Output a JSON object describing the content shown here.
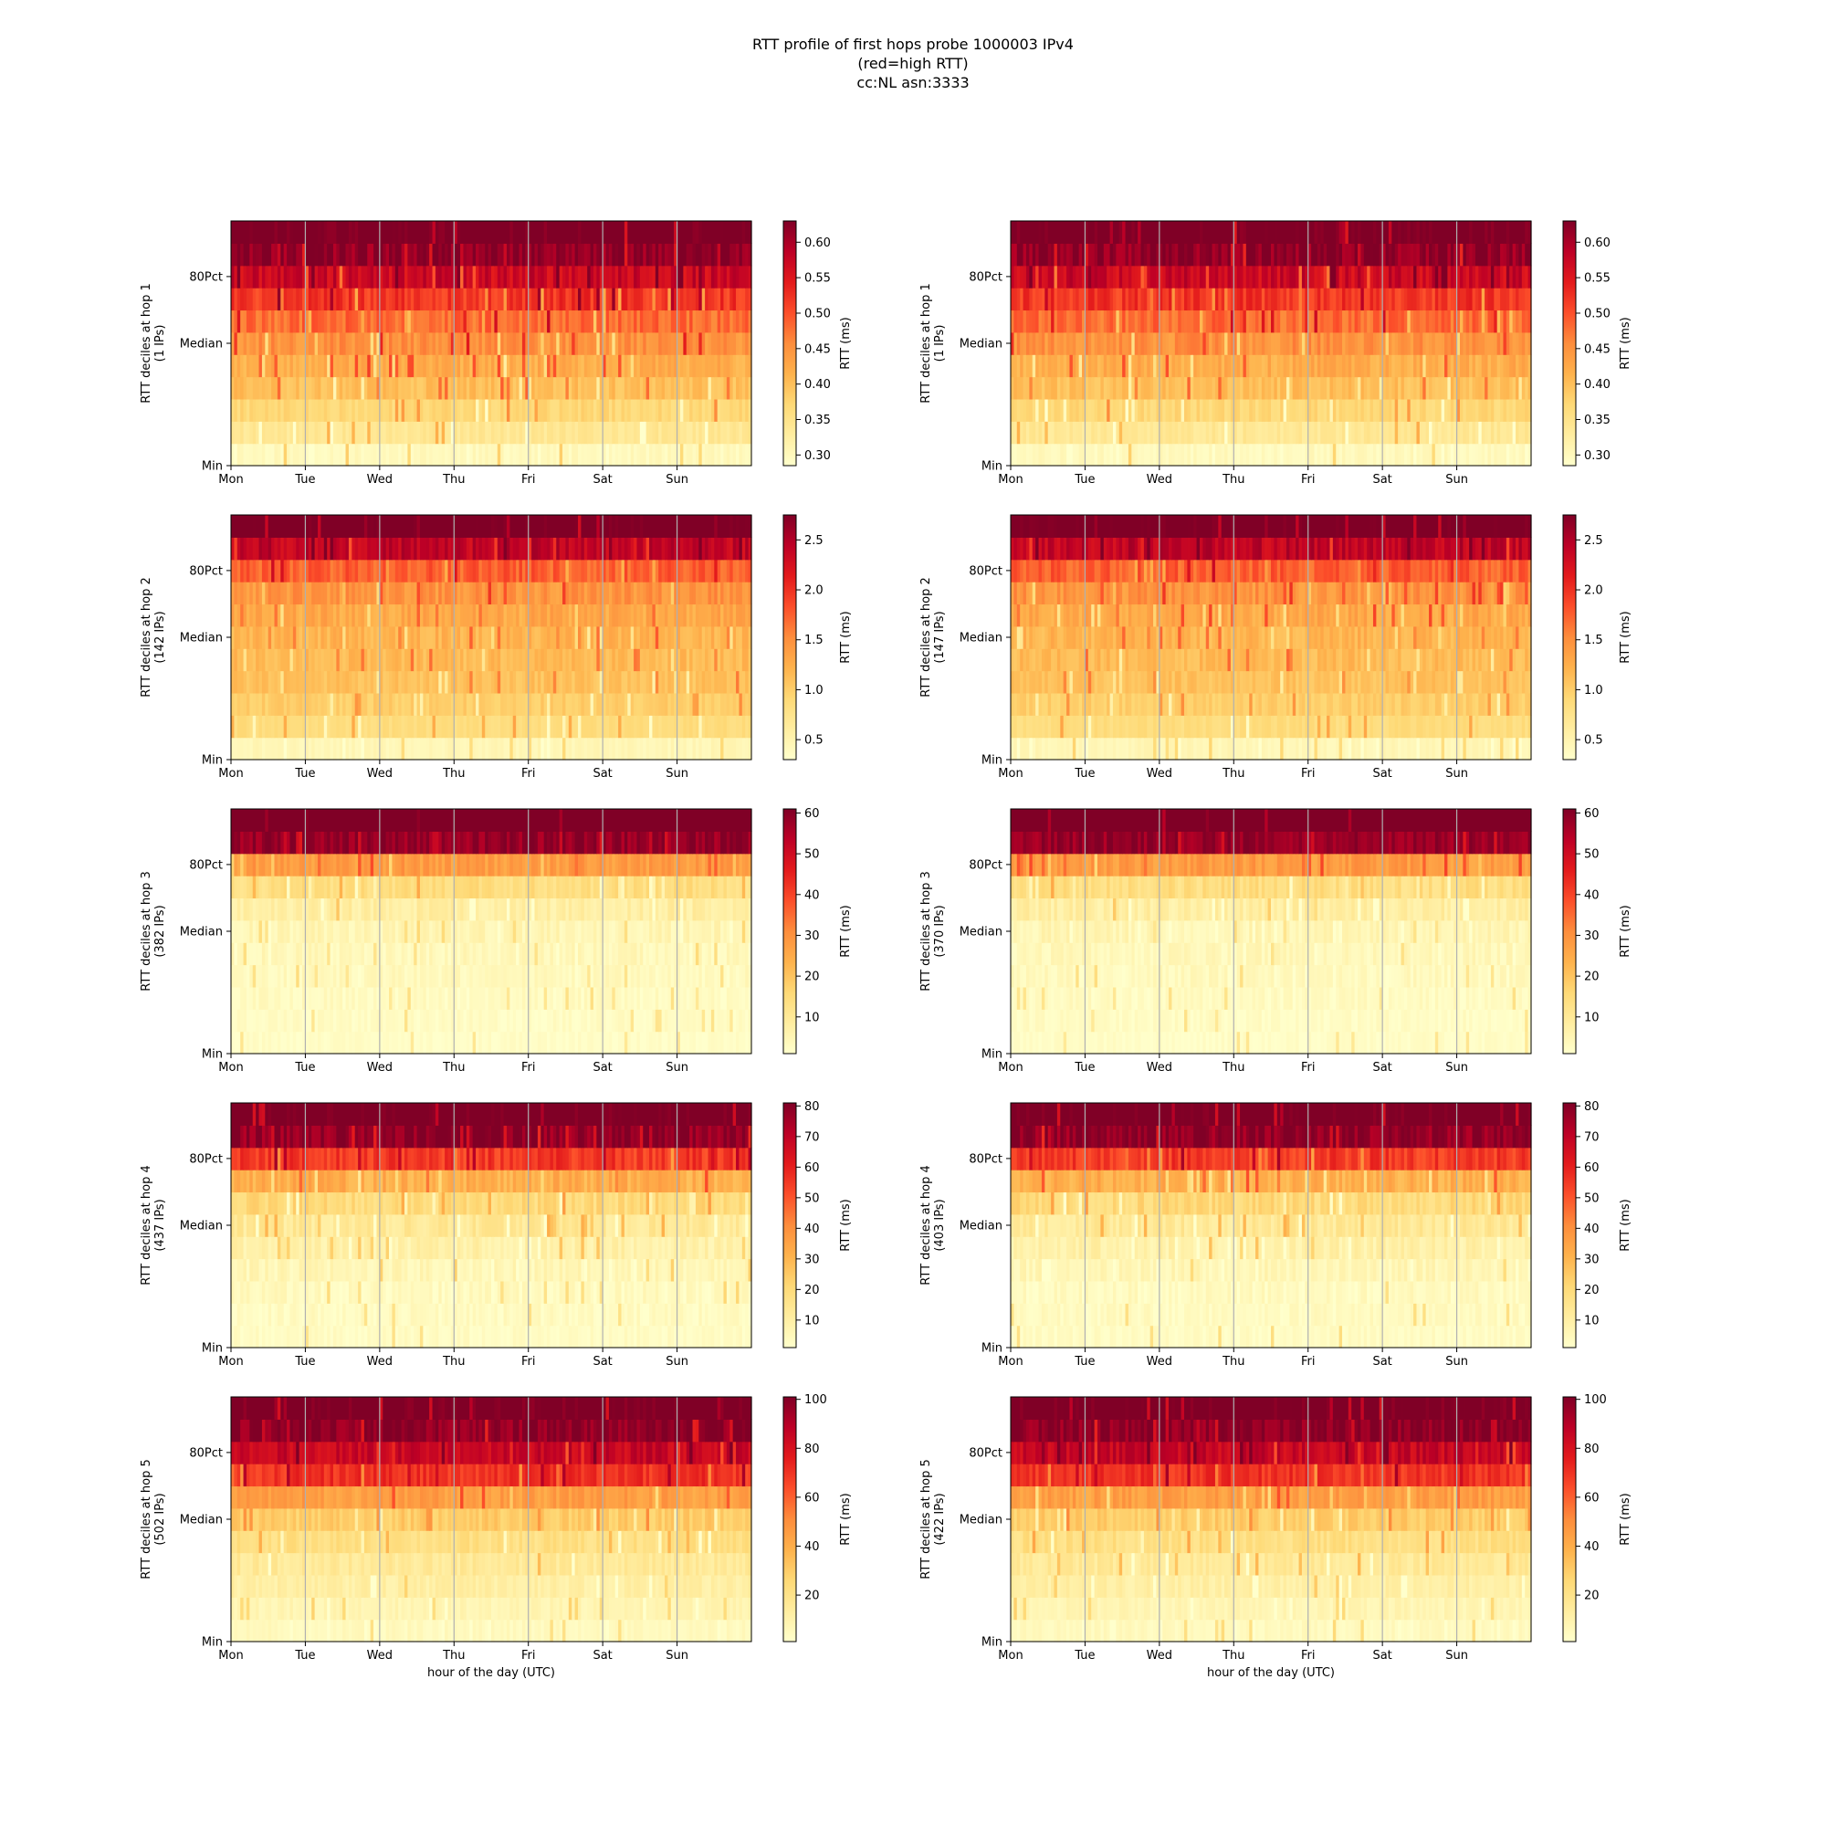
{
  "figure": {
    "title_lines": [
      "RTT profile of first hops probe 1000003 IPv4",
      "(red=high RTT)",
      "cc:NL asn:3333"
    ]
  },
  "colormap": [
    "#ffffcc",
    "#ffeda0",
    "#fed976",
    "#feb24c",
    "#fd8d3c",
    "#fc4e2a",
    "#e31a1c",
    "#bd0026",
    "#800026"
  ],
  "x_axis": {
    "tick_labels": [
      "Mon",
      "Tue",
      "Wed",
      "Thu",
      "Fri",
      "Sat",
      "Sun"
    ],
    "label": "hour of the day (UTC)",
    "range_hours": [
      0,
      168
    ]
  },
  "y_axis": {
    "tick_labels": [
      "Min",
      "Median",
      "80Pct"
    ],
    "deciles": 11
  },
  "colorbar_label": "RTT (ms)",
  "chart_data": [
    {
      "type": "heatmap",
      "hop": 1,
      "ylabel_line1": "RTT deciles at hop 1",
      "ylabel_line2": "(1 IPs)",
      "vmin": 0.285,
      "vmax": 0.63,
      "cbar_ticks": [
        "0.30",
        "0.35",
        "0.40",
        "0.45",
        "0.50",
        "0.55",
        "0.60"
      ],
      "cbar_tick_values": [
        0.3,
        0.35,
        0.4,
        0.45,
        0.5,
        0.55,
        0.6
      ],
      "decile_rtt": [
        0.3,
        0.34,
        0.37,
        0.4,
        0.42,
        0.45,
        0.48,
        0.52,
        0.57,
        0.62,
        0.65
      ],
      "noise": 0.025,
      "seed": 11
    },
    {
      "type": "heatmap",
      "hop": 1,
      "ylabel_line1": "RTT deciles at hop 1",
      "ylabel_line2": "(1 IPs)",
      "vmin": 0.285,
      "vmax": 0.63,
      "cbar_ticks": [
        "0.30",
        "0.35",
        "0.40",
        "0.45",
        "0.50",
        "0.55",
        "0.60"
      ],
      "cbar_tick_values": [
        0.3,
        0.35,
        0.4,
        0.45,
        0.5,
        0.55,
        0.6
      ],
      "decile_rtt": [
        0.3,
        0.34,
        0.37,
        0.4,
        0.42,
        0.45,
        0.48,
        0.52,
        0.57,
        0.62,
        0.65
      ],
      "noise": 0.025,
      "seed": 12
    },
    {
      "type": "heatmap",
      "hop": 2,
      "ylabel_line1": "RTT deciles at hop 2",
      "ylabel_line2": "(142 IPs)",
      "vmin": 0.3,
      "vmax": 2.75,
      "cbar_ticks": [
        "0.5",
        "1.0",
        "1.5",
        "2.0",
        "2.5"
      ],
      "cbar_tick_values": [
        0.5,
        1.0,
        1.5,
        2.0,
        2.5
      ],
      "decile_rtt": [
        0.45,
        0.85,
        1.0,
        1.1,
        1.15,
        1.2,
        1.3,
        1.45,
        1.75,
        2.4,
        2.9
      ],
      "noise": 0.15,
      "seed": 21
    },
    {
      "type": "heatmap",
      "hop": 2,
      "ylabel_line1": "RTT deciles at hop 2",
      "ylabel_line2": "(147 IPs)",
      "vmin": 0.3,
      "vmax": 2.75,
      "cbar_ticks": [
        "0.5",
        "1.0",
        "1.5",
        "2.0",
        "2.5"
      ],
      "cbar_tick_values": [
        0.5,
        1.0,
        1.5,
        2.0,
        2.5
      ],
      "decile_rtt": [
        0.45,
        0.85,
        1.0,
        1.1,
        1.15,
        1.2,
        1.3,
        1.45,
        1.75,
        2.4,
        2.9
      ],
      "noise": 0.15,
      "seed": 22
    },
    {
      "type": "heatmap",
      "hop": 3,
      "ylabel_line1": "RTT deciles at hop 3",
      "ylabel_line2": "(382 IPs)",
      "vmin": 1,
      "vmax": 61,
      "cbar_ticks": [
        "10",
        "20",
        "30",
        "40",
        "50",
        "60"
      ],
      "cbar_tick_values": [
        10,
        20,
        30,
        40,
        50,
        60
      ],
      "decile_rtt": [
        2,
        2.5,
        3,
        3.5,
        4,
        5,
        8,
        14,
        28,
        58,
        65
      ],
      "noise": 3,
      "seed": 31
    },
    {
      "type": "heatmap",
      "hop": 3,
      "ylabel_line1": "RTT deciles at hop 3",
      "ylabel_line2": "(370 IPs)",
      "vmin": 1,
      "vmax": 61,
      "cbar_ticks": [
        "10",
        "20",
        "30",
        "40",
        "50",
        "60"
      ],
      "cbar_tick_values": [
        10,
        20,
        30,
        40,
        50,
        60
      ],
      "decile_rtt": [
        2,
        2.5,
        3,
        3.5,
        4,
        5,
        8,
        14,
        28,
        58,
        65
      ],
      "noise": 3,
      "seed": 32
    },
    {
      "type": "heatmap",
      "hop": 4,
      "ylabel_line1": "RTT deciles at hop 4",
      "ylabel_line2": "(437 IPs)",
      "vmin": 1,
      "vmax": 81,
      "cbar_ticks": [
        "10",
        "20",
        "30",
        "40",
        "50",
        "60",
        "70",
        "80"
      ],
      "cbar_tick_values": [
        10,
        20,
        30,
        40,
        50,
        60,
        70,
        80
      ],
      "decile_rtt": [
        3,
        3.5,
        4,
        6,
        9,
        13,
        20,
        32,
        55,
        78,
        85
      ],
      "noise": 5,
      "seed": 41
    },
    {
      "type": "heatmap",
      "hop": 4,
      "ylabel_line1": "RTT deciles at hop 4",
      "ylabel_line2": "(403 IPs)",
      "vmin": 1,
      "vmax": 81,
      "cbar_ticks": [
        "10",
        "20",
        "30",
        "40",
        "50",
        "60",
        "70",
        "80"
      ],
      "cbar_tick_values": [
        10,
        20,
        30,
        40,
        50,
        60,
        70,
        80
      ],
      "decile_rtt": [
        3,
        3.5,
        4,
        6,
        9,
        13,
        20,
        32,
        55,
        78,
        85
      ],
      "noise": 5,
      "seed": 42
    },
    {
      "type": "heatmap",
      "hop": 5,
      "ylabel_line1": "RTT deciles at hop 5",
      "ylabel_line2": "(502 IPs)",
      "vmin": 1,
      "vmax": 101,
      "cbar_ticks": [
        "20",
        "40",
        "60",
        "80",
        "100"
      ],
      "cbar_tick_values": [
        20,
        40,
        60,
        80,
        100
      ],
      "decile_rtt": [
        5,
        8,
        12,
        16,
        22,
        30,
        45,
        70,
        85,
        98,
        105
      ],
      "noise": 6,
      "seed": 51
    },
    {
      "type": "heatmap",
      "hop": 5,
      "ylabel_line1": "RTT deciles at hop 5",
      "ylabel_line2": "(422 IPs)",
      "vmin": 1,
      "vmax": 101,
      "cbar_ticks": [
        "20",
        "40",
        "60",
        "80",
        "100"
      ],
      "cbar_tick_values": [
        20,
        40,
        60,
        80,
        100
      ],
      "decile_rtt": [
        5,
        8,
        12,
        16,
        22,
        30,
        45,
        70,
        85,
        98,
        105
      ],
      "noise": 6,
      "seed": 52
    }
  ]
}
